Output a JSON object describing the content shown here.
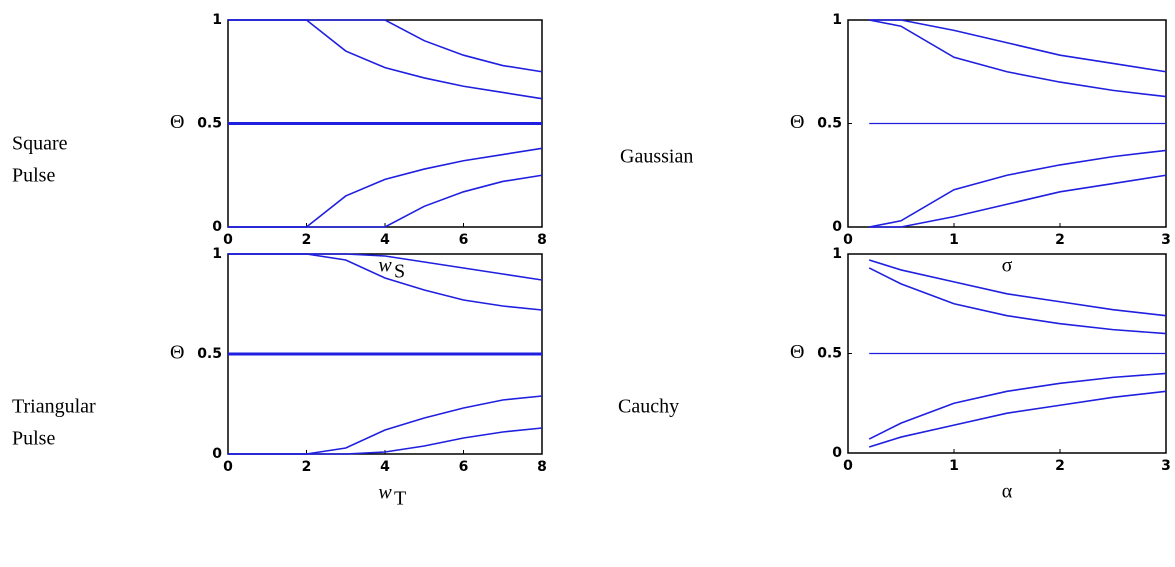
{
  "chart_data": [
    {
      "type": "line",
      "row_label": [
        "Square",
        "Pulse"
      ],
      "y_label": "Θ",
      "x_label": "w",
      "x_label_sub": "S",
      "color": "#1f1fe0",
      "x": [
        0,
        1,
        2,
        3,
        4,
        5,
        6,
        7,
        8
      ],
      "xlim": [
        0,
        8
      ],
      "xticks": [
        0,
        2,
        4,
        6,
        8
      ],
      "ylim": [
        0,
        1
      ],
      "yticks": [
        0,
        0.5,
        1
      ],
      "series": [
        {
          "values": [
            1,
            1,
            1,
            0.85,
            0.77,
            0.72,
            0.68,
            0.65,
            0.62
          ]
        },
        {
          "values": [
            1,
            1,
            1,
            1,
            1,
            0.9,
            0.83,
            0.78,
            0.75
          ]
        },
        {
          "values": [
            0.5,
            0.5,
            0.5,
            0.5,
            0.5,
            0.5,
            0.5,
            0.5,
            0.5
          ]
        },
        {
          "values": [
            0,
            0,
            0,
            0.15,
            0.23,
            0.28,
            0.32,
            0.35,
            0.38
          ]
        },
        {
          "values": [
            0,
            0,
            0,
            0,
            0,
            0.1,
            0.17,
            0.22,
            0.25
          ]
        }
      ]
    },
    {
      "type": "line",
      "row_label": [
        "Gaussian"
      ],
      "y_label": "Θ",
      "x_label": "σ",
      "color": "#1f1fe0",
      "x": [
        0.2,
        0.5,
        1,
        1.5,
        2,
        2.5,
        3
      ],
      "xlim": [
        0,
        3
      ],
      "xticks": [
        0,
        1,
        2,
        3
      ],
      "ylim": [
        0,
        1
      ],
      "yticks": [
        0,
        0.5,
        1
      ],
      "series": [
        {
          "values": [
            1,
            0.97,
            0.82,
            0.75,
            0.7,
            0.66,
            0.63
          ]
        },
        {
          "values": [
            1,
            1,
            0.95,
            0.89,
            0.83,
            0.79,
            0.75
          ]
        },
        {
          "values": [
            0.5,
            0.5,
            0.5,
            0.5,
            0.5,
            0.5,
            0.5
          ]
        },
        {
          "values": [
            0,
            0.03,
            0.18,
            0.25,
            0.3,
            0.34,
            0.37
          ]
        },
        {
          "values": [
            0,
            0,
            0.05,
            0.11,
            0.17,
            0.21,
            0.25
          ]
        }
      ]
    },
    {
      "type": "line",
      "row_label": [
        "Triangular",
        "Pulse"
      ],
      "y_label": "Θ",
      "x_label": "w",
      "x_label_sub": "T",
      "color": "#1f1fe0",
      "x": [
        0,
        1,
        2,
        3,
        4,
        5,
        6,
        7,
        8
      ],
      "xlim": [
        0,
        8
      ],
      "xticks": [
        0,
        2,
        4,
        6,
        8
      ],
      "ylim": [
        0,
        1
      ],
      "yticks": [
        0,
        0.5,
        1
      ],
      "series": [
        {
          "values": [
            1,
            1,
            1,
            0.97,
            0.88,
            0.82,
            0.77,
            0.74,
            0.72
          ]
        },
        {
          "values": [
            1,
            1,
            1,
            1,
            0.99,
            0.96,
            0.93,
            0.9,
            0.87
          ]
        },
        {
          "values": [
            0.5,
            0.5,
            0.5,
            0.5,
            0.5,
            0.5,
            0.5,
            0.5,
            0.5
          ]
        },
        {
          "values": [
            0,
            0,
            0,
            0.03,
            0.12,
            0.18,
            0.23,
            0.27,
            0.29
          ]
        },
        {
          "values": [
            0,
            0,
            0,
            0,
            0.01,
            0.04,
            0.08,
            0.11,
            0.13
          ]
        }
      ]
    },
    {
      "type": "line",
      "row_label": [
        "Cauchy"
      ],
      "y_label": "Θ",
      "x_label": "α",
      "color": "#1f1fe0",
      "x": [
        0.2,
        0.5,
        1,
        1.5,
        2,
        2.5,
        3
      ],
      "xlim": [
        0,
        3
      ],
      "xticks": [
        0,
        1,
        2,
        3
      ],
      "ylim": [
        0,
        1
      ],
      "yticks": [
        0,
        0.5,
        1
      ],
      "series": [
        {
          "values": [
            0.97,
            0.92,
            0.86,
            0.8,
            0.76,
            0.72,
            0.69
          ]
        },
        {
          "values": [
            0.93,
            0.85,
            0.75,
            0.69,
            0.65,
            0.62,
            0.6
          ]
        },
        {
          "values": [
            0.5,
            0.5,
            0.5,
            0.5,
            0.5,
            0.5,
            0.5
          ]
        },
        {
          "values": [
            0.03,
            0.08,
            0.14,
            0.2,
            0.24,
            0.28,
            0.31
          ]
        },
        {
          "values": [
            0.07,
            0.15,
            0.25,
            0.31,
            0.35,
            0.38,
            0.4
          ]
        }
      ]
    }
  ]
}
